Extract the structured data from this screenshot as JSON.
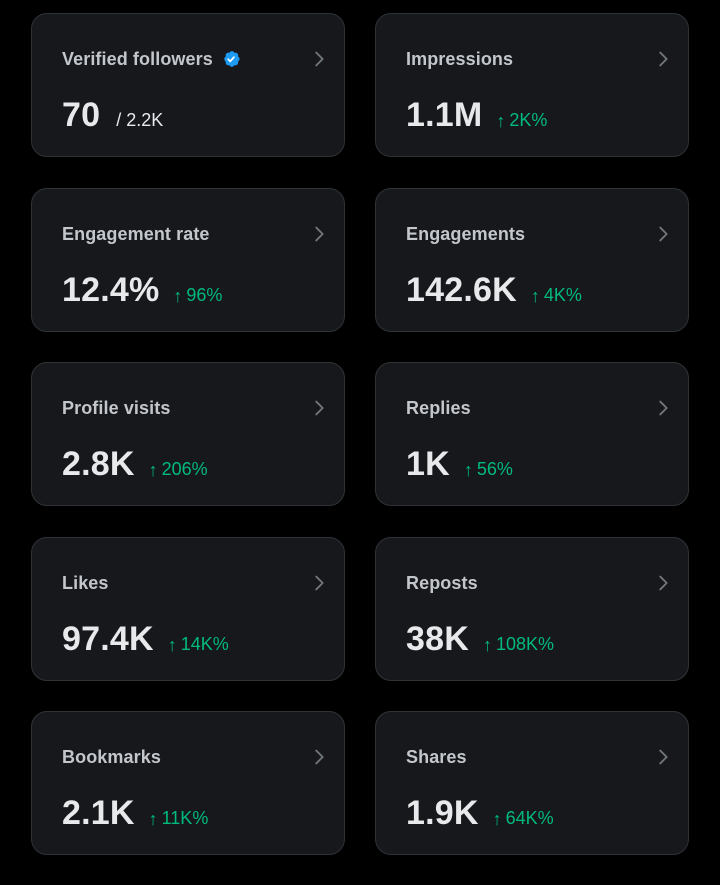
{
  "colors": {
    "background": "#000000",
    "card": "#16181c",
    "card_border": "#2f3336",
    "positive": "#00ba7c",
    "verified": "#1d9bf0",
    "chevron": "#71767b"
  },
  "icons": {
    "card_chevron": "chevron-right-icon",
    "verified": "verified-badge-icon",
    "change": "arrow-up-icon"
  },
  "cards": [
    {
      "title": "Verified followers",
      "value": "70",
      "sub_value": "/ 2.2K",
      "change": "",
      "verified": true
    },
    {
      "title": "Impressions",
      "value": "1.1M",
      "change": "2K%"
    },
    {
      "title": "Engagement rate",
      "value": "12.4%",
      "change": "96%"
    },
    {
      "title": "Engagements",
      "value": "142.6K",
      "change": "4K%"
    },
    {
      "title": "Profile visits",
      "value": "2.8K",
      "change": "206%"
    },
    {
      "title": "Replies",
      "value": "1K",
      "change": "56%"
    },
    {
      "title": "Likes",
      "value": "97.4K",
      "change": "14K%"
    },
    {
      "title": "Reposts",
      "value": "38K",
      "change": "108K%"
    },
    {
      "title": "Bookmarks",
      "value": "2.1K",
      "change": "11K%"
    },
    {
      "title": "Shares",
      "value": "1.9K",
      "change": "64K%"
    }
  ]
}
